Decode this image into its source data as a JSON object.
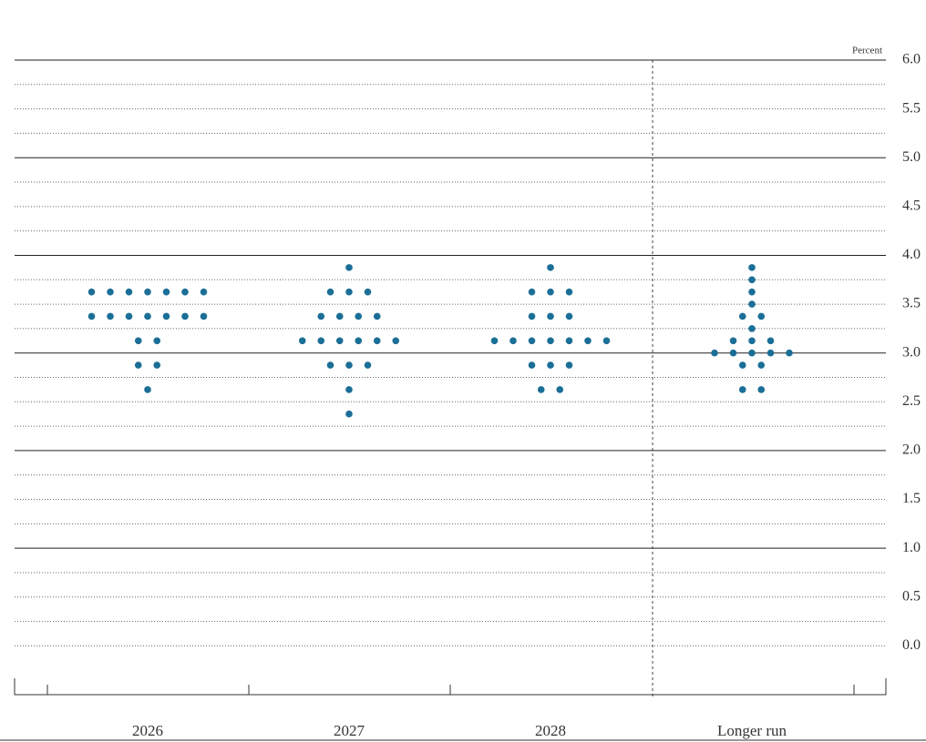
{
  "chart_data": {
    "type": "dot",
    "unit_label": "Percent",
    "categories": [
      "2026",
      "2027",
      "2028",
      "Longer run"
    ],
    "dots": [
      [
        3.625,
        3.625,
        3.625,
        3.625,
        3.625,
        3.625,
        3.625,
        3.375,
        3.375,
        3.375,
        3.375,
        3.375,
        3.375,
        3.375,
        3.125,
        3.125,
        2.875,
        2.875,
        2.625
      ],
      [
        3.875,
        3.625,
        3.625,
        3.625,
        3.375,
        3.375,
        3.375,
        3.375,
        3.125,
        3.125,
        3.125,
        3.125,
        3.125,
        3.125,
        2.875,
        2.875,
        2.875,
        2.625,
        2.375
      ],
      [
        3.875,
        3.625,
        3.625,
        3.625,
        3.375,
        3.375,
        3.375,
        3.125,
        3.125,
        3.125,
        3.125,
        3.125,
        3.125,
        3.125,
        2.875,
        2.875,
        2.875,
        2.625,
        2.625
      ],
      [
        3.875,
        3.75,
        3.625,
        3.5,
        3.375,
        3.375,
        3.25,
        3.125,
        3.125,
        3.125,
        3,
        3,
        3,
        3,
        3,
        2.875,
        2.875,
        2.625,
        2.625
      ]
    ],
    "color": "#1b6f97",
    "ylim": [
      -0.5,
      6
    ],
    "yticks": [
      {
        "value": 0,
        "label": "0.0"
      },
      0.5,
      {
        "value": 1,
        "label": "1.0"
      },
      1.5,
      {
        "value": 2,
        "label": "2.0"
      },
      2.5,
      {
        "value": 3,
        "label": "3.0"
      },
      3.5,
      {
        "value": 4,
        "label": "4.0"
      },
      4.5,
      {
        "value": 5,
        "label": "5.0"
      },
      5.5,
      {
        "value": 6,
        "label": "6.0"
      }
    ],
    "minor_yticks": [
      0.25,
      0.75,
      1.25,
      1.75,
      2.25,
      2.75,
      3.25,
      3.75,
      4.25,
      4.75,
      5.25,
      5.75
    ]
  }
}
